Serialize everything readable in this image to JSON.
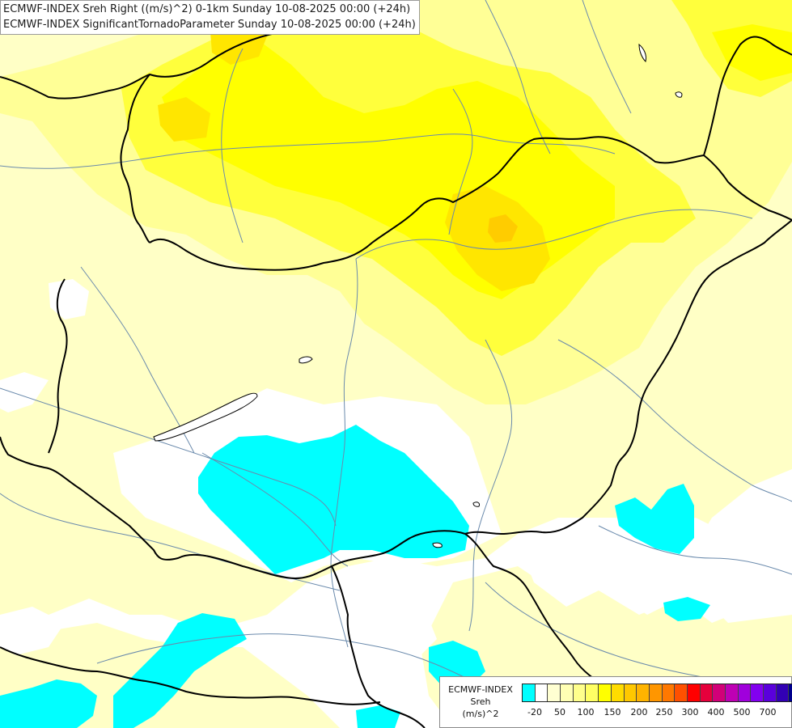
{
  "title": {
    "line1": "ECMWF-INDEX Sreh Right ((m/s)^2) 0-1km Sunday 10-08-2025 00:00 (+24h)",
    "line2": "ECMWF-INDEX SignificantTornadoParameter Sunday 10-08-2025 00:00 (+24h)"
  },
  "legend": {
    "title": "ECMWF-INDEX",
    "variable": "Sreh",
    "unit": "(m/s)^2",
    "ticks": [
      "-20",
      "50",
      "100",
      "150",
      "200",
      "250",
      "300",
      "400",
      "500",
      "700"
    ],
    "colors": [
      "#00ffff",
      "#ffffff",
      "#ffffd2",
      "#ffffb4",
      "#ffff8c",
      "#ffff64",
      "#ffff00",
      "#ffdc00",
      "#ffc800",
      "#ffb400",
      "#ff9600",
      "#ff7800",
      "#ff5000",
      "#ff0000",
      "#e6003c",
      "#d20078",
      "#be00b4",
      "#a000dc",
      "#8200f0",
      "#5a00dc",
      "#3200b4",
      "#00008c"
    ]
  },
  "map_colors": {
    "cyan": "#00ffff",
    "pale_yellow": "#ffffc6",
    "light_yellow": "#ffff96",
    "yellow": "#ffff3c",
    "bright_yellow": "#ffff00",
    "gold": "#ffe600",
    "orange": "#ffcc00",
    "river": "#6a8aac",
    "border": "#000000"
  }
}
